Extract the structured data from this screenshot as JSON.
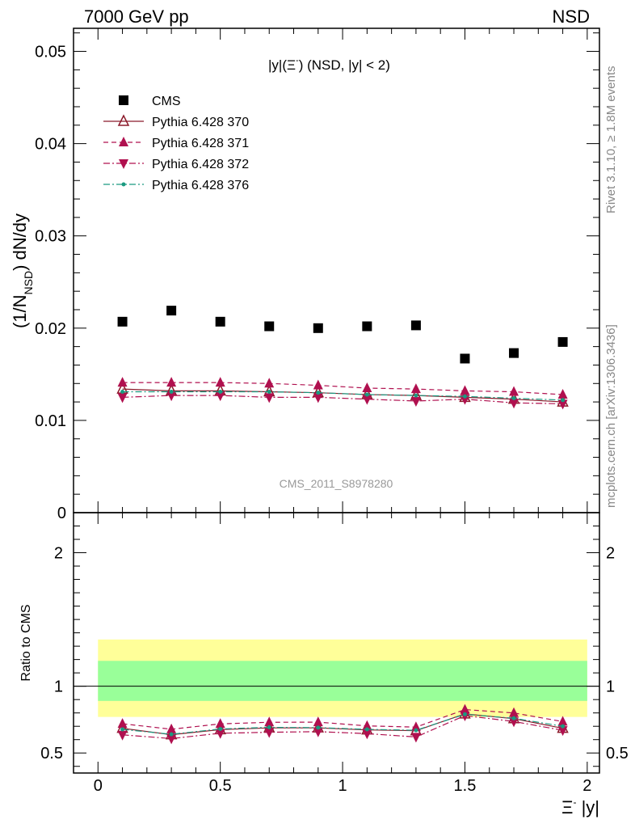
{
  "header": {
    "left": "7000 GeV pp",
    "right": "NSD"
  },
  "plot_title": {
    "main": "|y|(Ξ",
    "sup": "-",
    "rest": ") (NSD, |y| < 2)"
  },
  "side_labels": {
    "rivet": "Rivet 3.1.10, ≥ 1.8M events",
    "mcplots": "mcplots.cern.ch [arXiv:1306.3436]"
  },
  "watermark": "CMS_2011_S8978280",
  "axes": {
    "ylabel_top": "(1/N",
    "ylabel_sub": "NSD",
    "ylabel_rest": ") dN/dy",
    "ylabel_ratio": "Ratio to CMS",
    "xlabel_main": "Ξ",
    "xlabel_sup": "-",
    "xlabel_rest": " |y|"
  },
  "colors": {
    "data": "#000000",
    "mc370": "#8b1a2a",
    "mc371": "#b0104f",
    "mc372": "#b0104f",
    "mc376": "#1a9a80",
    "band_outer": "#ffff99",
    "band_inner": "#99ff99"
  },
  "chart_data": [
    {
      "type": "scatter",
      "title": "|y|(Ξ-) (NSD, |y| < 2)",
      "xlabel": "Ξ- |y|",
      "ylabel": "(1/N_NSD) dN/dy",
      "xlim": [
        -0.1,
        2.05
      ],
      "ylim": [
        0,
        0.0525
      ],
      "x_ticks": [
        "0",
        "0.5",
        "1",
        "1.5",
        "2"
      ],
      "y_ticks": [
        "0",
        "0.01",
        "0.02",
        "0.03",
        "0.04",
        "0.05"
      ],
      "x": [
        0.1,
        0.3,
        0.5,
        0.7,
        0.9,
        1.1,
        1.3,
        1.5,
        1.7,
        1.9
      ],
      "legend_position": "top-left",
      "series": [
        {
          "name": "CMS",
          "marker": "square",
          "values": [
            0.0207,
            0.0219,
            0.0207,
            0.0202,
            0.02,
            0.0202,
            0.0203,
            0.0167,
            0.0173,
            0.0185
          ]
        },
        {
          "name": "Pythia 6.428 370",
          "marker": "triangle-open",
          "line": "solid",
          "values": [
            0.0134,
            0.0132,
            0.0132,
            0.0131,
            0.013,
            0.0128,
            0.0127,
            0.0125,
            0.0123,
            0.012
          ]
        },
        {
          "name": "Pythia 6.428 371",
          "marker": "triangle-up",
          "line": "dashed",
          "values": [
            0.0141,
            0.0141,
            0.0141,
            0.014,
            0.0138,
            0.0135,
            0.0134,
            0.0132,
            0.0131,
            0.0128
          ]
        },
        {
          "name": "Pythia 6.428 372",
          "marker": "triangle-down",
          "line": "dashdot",
          "values": [
            0.0125,
            0.0127,
            0.0127,
            0.0125,
            0.0125,
            0.0123,
            0.0121,
            0.0123,
            0.0119,
            0.0118
          ]
        },
        {
          "name": "Pythia 6.428 376",
          "marker": "dot",
          "line": "dashdot",
          "values": [
            0.0131,
            0.0131,
            0.0131,
            0.0131,
            0.013,
            0.0128,
            0.0127,
            0.0126,
            0.0124,
            0.0122
          ]
        }
      ]
    },
    {
      "type": "line",
      "ylabel": "Ratio to CMS",
      "xlabel": "Ξ- |y|",
      "xlim": [
        -0.1,
        2.05
      ],
      "ylim": [
        0.35,
        2.3
      ],
      "y_ticks": [
        "0.5",
        "1",
        "2"
      ],
      "x": [
        0.1,
        0.3,
        0.5,
        0.7,
        0.9,
        1.1,
        1.3,
        1.5,
        1.7,
        1.9
      ],
      "reference_line": 1,
      "band_outer": [
        0.77,
        1.35
      ],
      "band_inner": [
        0.89,
        1.19
      ],
      "series": [
        {
          "name": "Pythia 6.428 370",
          "values": [
            0.685,
            0.637,
            0.675,
            0.688,
            0.688,
            0.673,
            0.667,
            0.793,
            0.757,
            0.685
          ]
        },
        {
          "name": "Pythia 6.428 371",
          "values": [
            0.719,
            0.678,
            0.718,
            0.73,
            0.731,
            0.703,
            0.694,
            0.825,
            0.8,
            0.735
          ]
        },
        {
          "name": "Pythia 6.428 372",
          "values": [
            0.636,
            0.608,
            0.648,
            0.655,
            0.66,
            0.645,
            0.62,
            0.78,
            0.736,
            0.67
          ]
        },
        {
          "name": "Pythia 6.428 376",
          "values": [
            0.677,
            0.64,
            0.68,
            0.692,
            0.69,
            0.677,
            0.67,
            0.79,
            0.76,
            0.7
          ]
        }
      ]
    }
  ]
}
